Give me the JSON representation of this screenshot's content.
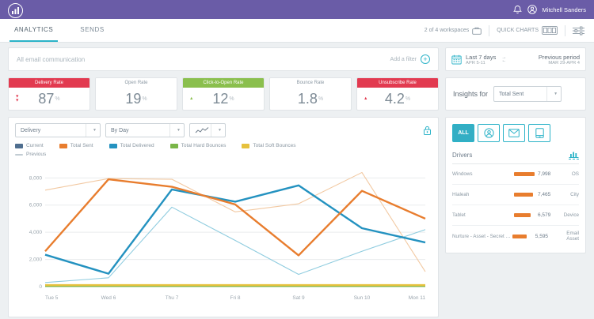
{
  "accent": {
    "purple": "#6a5ca7",
    "teal": "#2cb3c8",
    "red": "#e23a50",
    "green": "#8abf4d",
    "orange": "#e87d2e",
    "blue": "#2492c0"
  },
  "topbar": {
    "user_name": "Mitchell Sanders"
  },
  "tabs": {
    "analytics": "ANALYTICS",
    "sends": "SENDS"
  },
  "toolbar": {
    "workspaces_label": "2 of 4 workspaces",
    "quick_charts_label": "QUICK CHARTS"
  },
  "filter_bar": {
    "scope_label": "All email communication",
    "add_filter_label": "Add a filter"
  },
  "date_range": {
    "current_label": "Last 7 days",
    "current_dates": "APR 5-11",
    "previous_label": "Previous period",
    "previous_dates": "MAR 29-APR 4"
  },
  "metrics": [
    {
      "label": "Delivery Rate",
      "value": "87",
      "unit": "%",
      "header_bg": "#e23a50",
      "trend": "down-double",
      "trend_color": "#e23a50"
    },
    {
      "label": "Open Rate",
      "value": "19",
      "unit": "%",
      "header_bg": "",
      "trend": "none",
      "trend_color": ""
    },
    {
      "label": "Click-to-Open Rate",
      "value": "12",
      "unit": "%",
      "header_bg": "#8abf4d",
      "trend": "up",
      "trend_color": "#8abf4d"
    },
    {
      "label": "Bounce Rate",
      "value": "1.8",
      "unit": "%",
      "header_bg": "",
      "trend": "none",
      "trend_color": ""
    },
    {
      "label": "Unsubscribe Rate",
      "value": "4.2",
      "unit": "%",
      "header_bg": "#e23a50",
      "trend": "up",
      "trend_color": "#e23a50"
    }
  ],
  "chart_controls": {
    "metric_select": "Delivery",
    "interval_select": "By Day"
  },
  "legend": {
    "items": [
      {
        "label": "Current",
        "color": "#4f6e8f",
        "swatch": "square"
      },
      {
        "label": "Total Sent",
        "color": "#e87d2e",
        "swatch": "square"
      },
      {
        "label": "Total Delivered",
        "color": "#2492c0",
        "swatch": "square"
      },
      {
        "label": "Total Hard Bounces",
        "color": "#7ab648",
        "swatch": "square"
      },
      {
        "label": "Total Soft Bounces",
        "color": "#e6c13d",
        "swatch": "square"
      }
    ],
    "previous": {
      "label": "Previous",
      "color": "#c2ccd3",
      "swatch": "line"
    }
  },
  "chart_data": {
    "type": "line",
    "x": [
      "Tue 5",
      "Wed 6",
      "Thu 7",
      "Fri 8",
      "Sat 9",
      "Sun 10",
      "Mon 11"
    ],
    "ylim": [
      0,
      8600
    ],
    "yticks": [
      0,
      2000,
      4000,
      6000,
      8000
    ],
    "grid": true,
    "series": [
      {
        "name": "Total Sent",
        "period": "previous",
        "color": "#f2c9a2",
        "width": 1.1,
        "values": [
          7100,
          7950,
          7900,
          5500,
          6100,
          8400,
          1100
        ]
      },
      {
        "name": "Total Delivered",
        "period": "previous",
        "color": "#8fccdf",
        "width": 1.1,
        "values": [
          300,
          650,
          5850,
          3400,
          900,
          2600,
          4200
        ]
      },
      {
        "name": "Total Hard Bounces",
        "period": "current",
        "color": "#7ab648",
        "width": 1.8,
        "values": [
          30,
          30,
          30,
          30,
          30,
          30,
          30
        ]
      },
      {
        "name": "Total Soft Bounces",
        "period": "current",
        "color": "#e6c13d",
        "width": 2.4,
        "values": [
          110,
          110,
          110,
          110,
          110,
          110,
          110
        ]
      },
      {
        "name": "Total Delivered",
        "period": "current",
        "color": "#2492c0",
        "width": 2.4,
        "values": [
          2350,
          950,
          7150,
          6250,
          7450,
          4300,
          3250
        ]
      },
      {
        "name": "Total Sent",
        "period": "current",
        "color": "#e87d2e",
        "width": 2.4,
        "values": [
          2600,
          7900,
          7350,
          6050,
          2300,
          7050,
          5000
        ]
      }
    ]
  },
  "insights": {
    "label": "Insights for",
    "select_value": "Total Sent",
    "tab_all_label": "ALL"
  },
  "drivers": {
    "title": "Drivers",
    "rows": [
      {
        "name": "Windows",
        "value": "7,998",
        "category": "OS",
        "bar_pct": 100
      },
      {
        "name": "Hialeah",
        "value": "7,465",
        "category": "City",
        "bar_pct": 93
      },
      {
        "name": "Tablet",
        "value": "6,579",
        "category": "Device",
        "bar_pct": 82
      },
      {
        "name": "Nurture - Asset - Secret Sauc...",
        "value": "5,595",
        "category": "Email Asset",
        "bar_pct": 70
      }
    ]
  }
}
